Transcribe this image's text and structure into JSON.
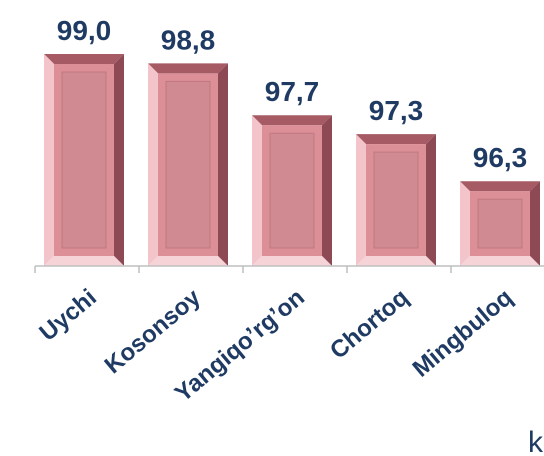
{
  "chart_data": {
    "type": "bar",
    "categories": [
      "Uychi",
      "Kosonsoy",
      "Yangiqo’rg’on",
      "Chortoq",
      "Mingbuloq"
    ],
    "values": [
      99.0,
      98.8,
      97.7,
      97.3,
      96.3
    ],
    "value_labels": [
      "99,0",
      "98,8",
      "97,7",
      "97,3",
      "96,3"
    ],
    "ylim": [
      94.5,
      99.0
    ],
    "grid": false,
    "legend": "none",
    "colors": {
      "bar_face": "#dd8f98",
      "bar_inner": "#d08a92",
      "bar_top_bevel": "#a55a64",
      "bar_left_bevel": "#f3c4ca",
      "bar_right_bevel": "#8e4a54",
      "bar_bottom_bevel": "#f6d3d7",
      "label_color": "#1f3b63",
      "axis": "#bfbfbf"
    }
  },
  "edge_text": "k"
}
